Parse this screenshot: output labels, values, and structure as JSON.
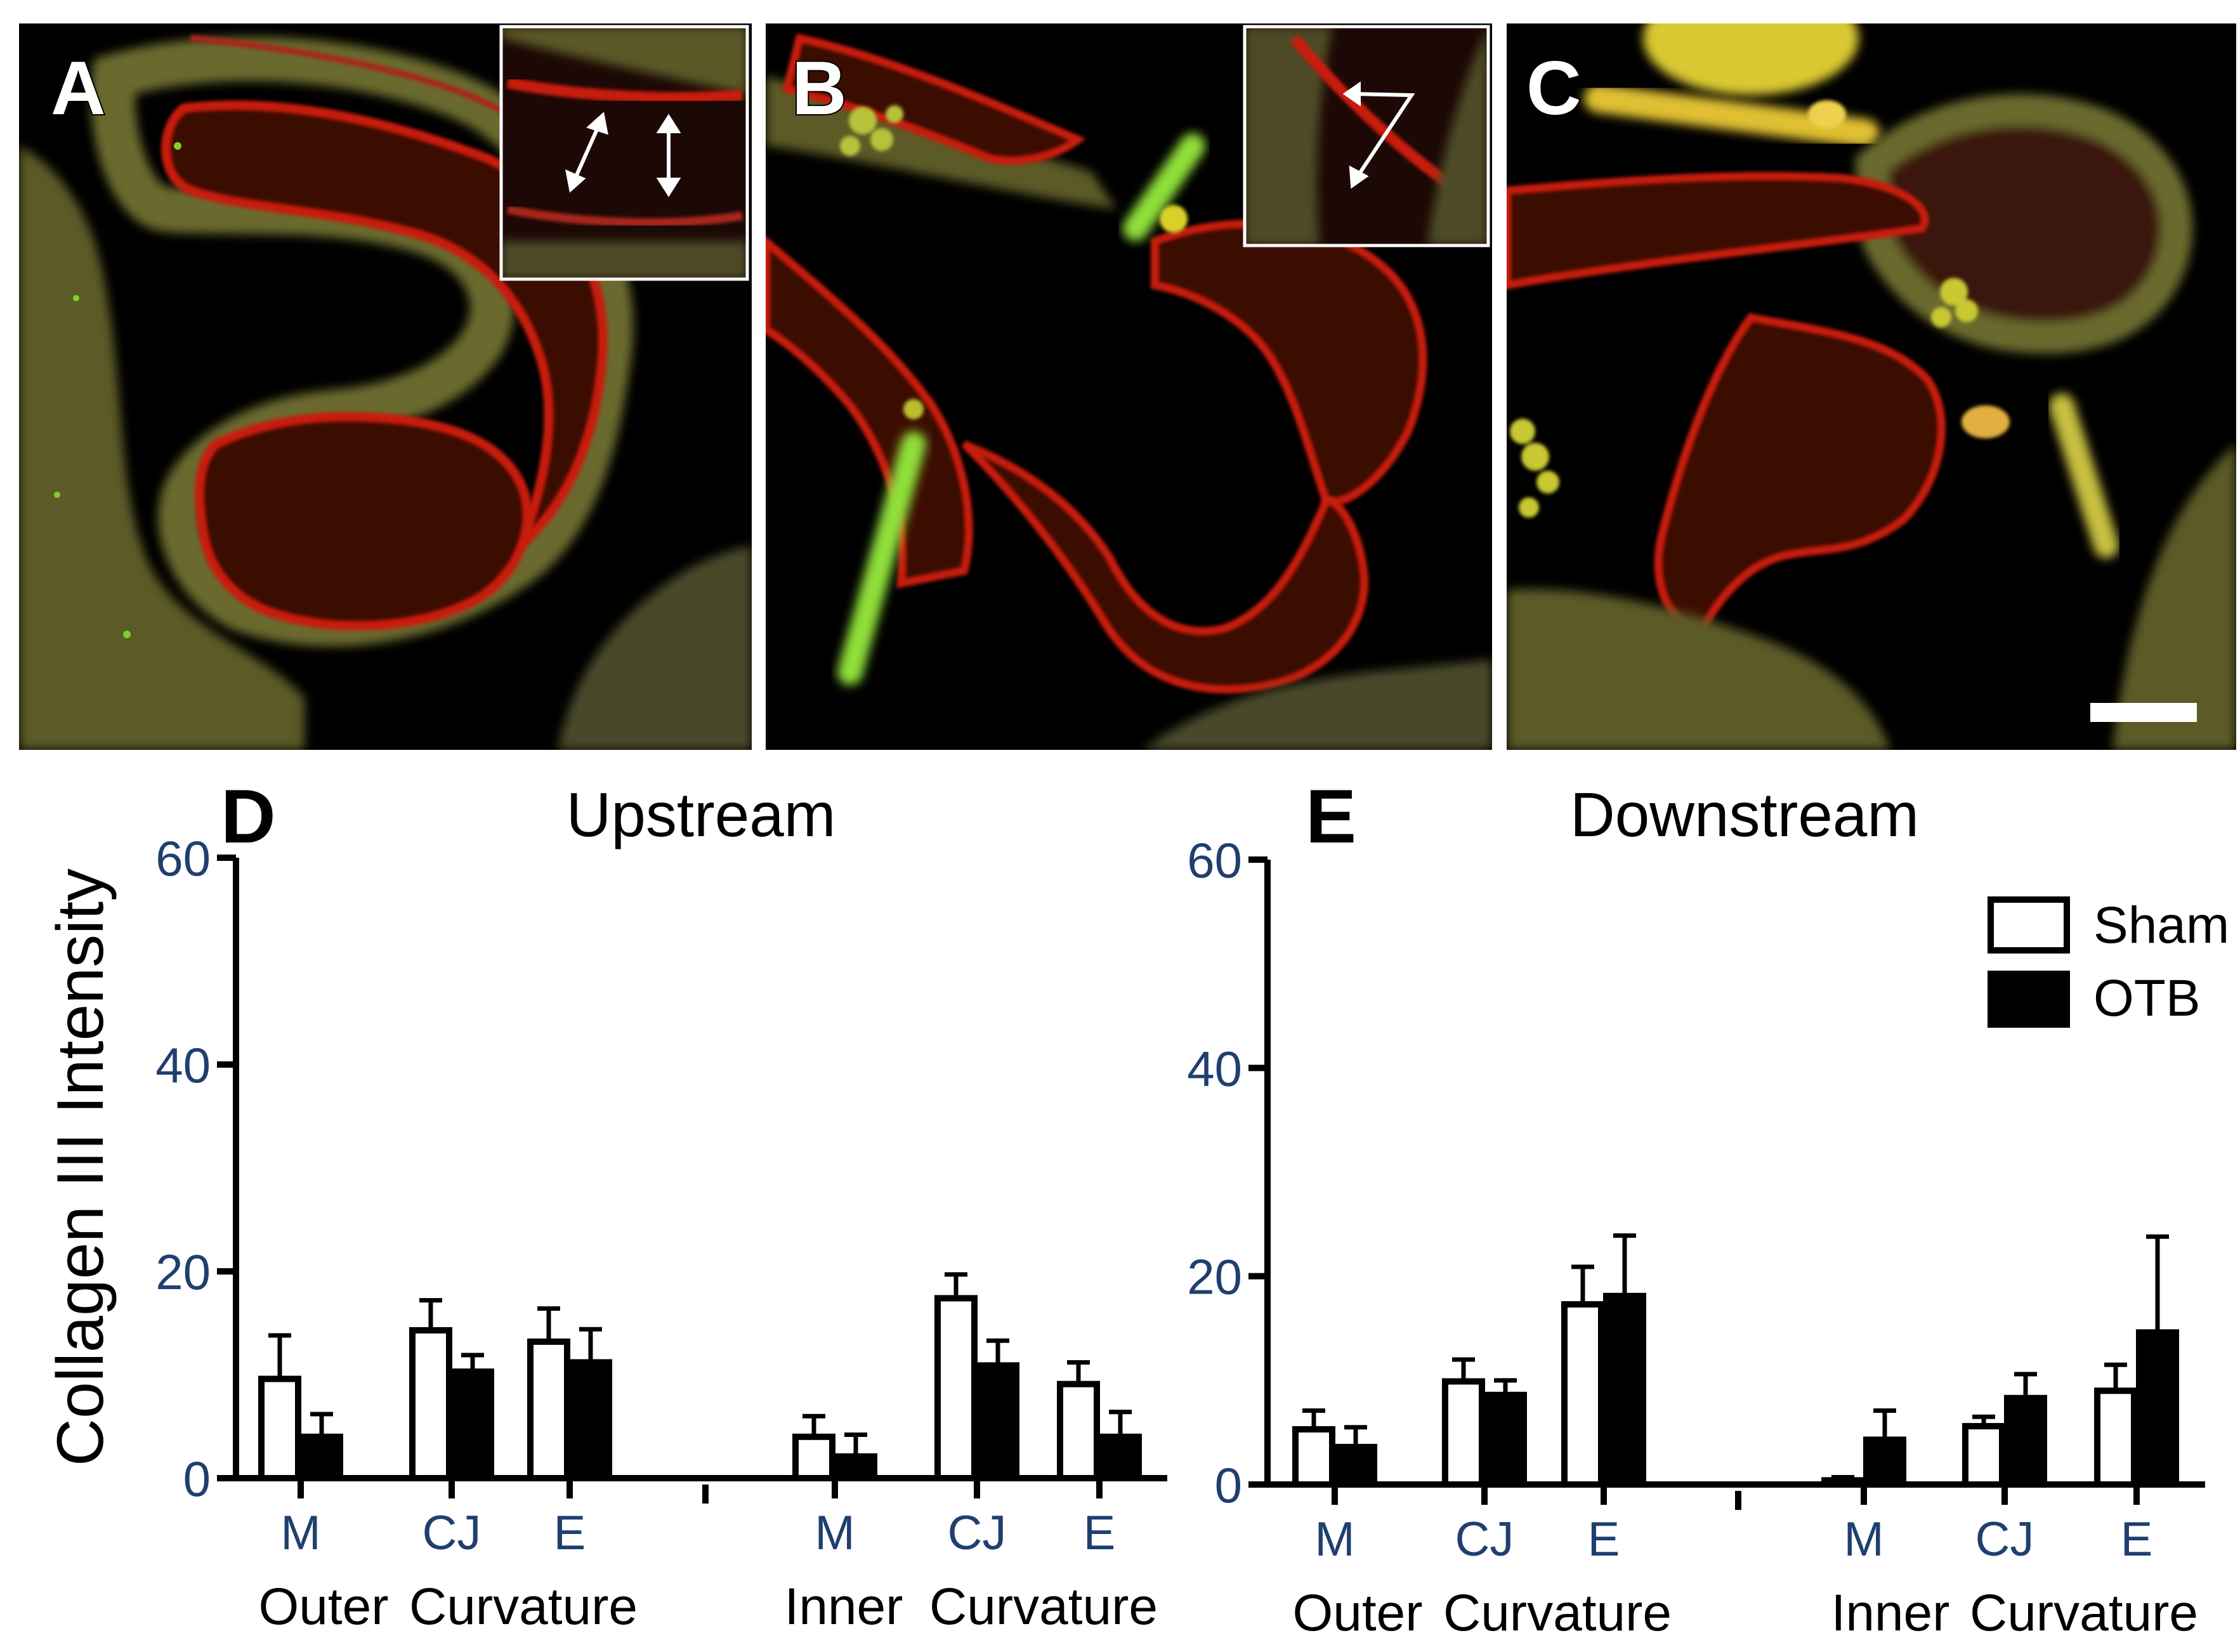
{
  "micrograph_panels": [
    {
      "id": "A",
      "letter": "A",
      "has_inset": true,
      "inset_arrows": "two double-headed arrows"
    },
    {
      "id": "B",
      "letter": "B",
      "has_inset": true,
      "inset_arrows": "angled double-headed arrow"
    },
    {
      "id": "C",
      "letter": "C",
      "has_inset": false,
      "has_scale_bar": true
    }
  ],
  "colors": {
    "tissue_red": "#c81e10",
    "tissue_olive": "#6e6a2c",
    "signal_green": "#7fcf2a",
    "signal_yellow": "#d9d02a",
    "background": "#000000"
  },
  "shared_ylabel": "Collagen III Intensity",
  "legend": [
    {
      "label": "Sham",
      "fill": "#ffffff"
    },
    {
      "label": "OTB",
      "fill": "#000000"
    }
  ],
  "chart_data": [
    {
      "panel_letter": "D",
      "type": "bar",
      "title": "Upstream",
      "ylabel": "Collagen III Intensity",
      "ylim": [
        0,
        60
      ],
      "yticks": [
        "0",
        "20",
        "40",
        "60"
      ],
      "categories": [
        "M",
        "CJ",
        "E",
        "M",
        "CJ",
        "E"
      ],
      "group_labels": [
        [
          "Outer",
          "Curvature"
        ],
        [
          "Inner",
          "Curvature"
        ]
      ],
      "series": [
        {
          "name": "Sham",
          "values": [
            9.6,
            14.3,
            13.2,
            4.0,
            17.4,
            9.1
          ],
          "errors": [
            4.2,
            2.9,
            3.2,
            2.0,
            2.3,
            2.1
          ]
        },
        {
          "name": "OTB",
          "values": [
            4.0,
            10.3,
            11.2,
            2.1,
            10.9,
            4.0
          ],
          "errors": [
            2.2,
            1.6,
            3.2,
            2.1,
            2.4,
            2.4
          ]
        }
      ]
    },
    {
      "panel_letter": "E",
      "type": "bar",
      "title": "Downstream",
      "ylabel": "",
      "ylim": [
        0,
        60
      ],
      "yticks": [
        "0",
        "20",
        "40",
        "60"
      ],
      "categories": [
        "M",
        "CJ",
        "E",
        "M",
        "CJ",
        "E"
      ],
      "group_labels": [
        [
          "Outer",
          "Curvature"
        ],
        [
          "Inner",
          "Curvature"
        ]
      ],
      "series": [
        {
          "name": "Sham",
          "values": [
            5.3,
            9.9,
            17.3,
            0.4,
            5.6,
            9.0
          ],
          "errors": [
            1.8,
            2.1,
            3.6,
            0.3,
            0.9,
            2.5
          ]
        },
        {
          "name": "OTB",
          "values": [
            3.6,
            8.6,
            18.1,
            4.3,
            8.3,
            14.6
          ],
          "errors": [
            1.9,
            1.4,
            5.8,
            2.8,
            2.3,
            9.2
          ]
        }
      ]
    }
  ]
}
